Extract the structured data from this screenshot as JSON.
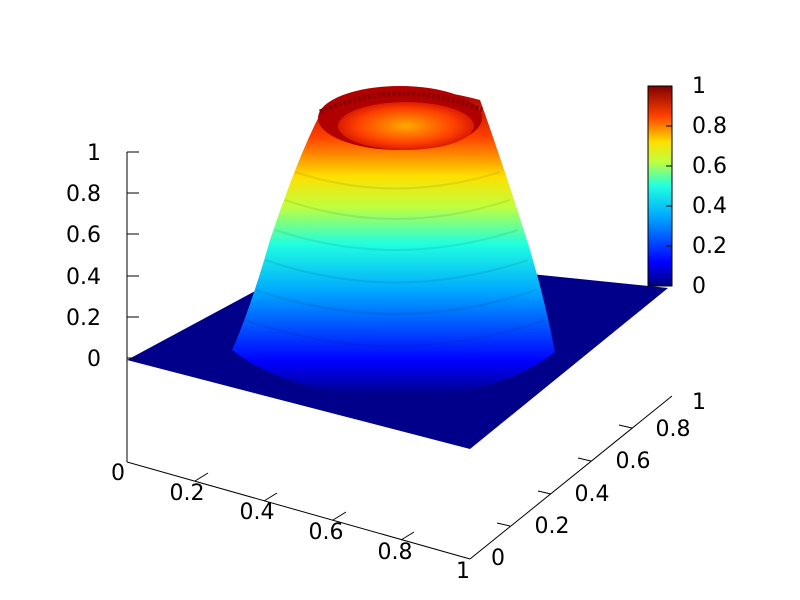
{
  "chart_data": {
    "type": "surface3d",
    "title": "",
    "xlabel": "",
    "ylabel": "",
    "zlabel": "",
    "xlim": [
      0,
      1
    ],
    "ylim": [
      0,
      1
    ],
    "zlim": [
      0,
      1
    ],
    "x_ticks": [
      "0",
      "0.2",
      "0.4",
      "0.6",
      "0.8",
      "1"
    ],
    "y_ticks": [
      "0",
      "0.2",
      "0.4",
      "0.6",
      "0.8",
      "1"
    ],
    "z_ticks": [
      "0",
      "0.2",
      "0.4",
      "0.6",
      "0.8",
      "1"
    ],
    "colorbar": {
      "range": [
        0,
        1
      ],
      "ticks": [
        "0",
        "0.2",
        "0.4",
        "0.6",
        "0.8",
        "1"
      ],
      "colormap": "jet",
      "placement": "top-right"
    },
    "surface": {
      "description_shape": "ring/plateau",
      "center": [
        0.5,
        0.5
      ],
      "rim_radius": 0.2,
      "base_radius": 0.38,
      "peak_value": 1.0,
      "inner_hole_value": 0.9,
      "background_value": 0
    },
    "colors": {
      "low": "#00008b",
      "mid_low": "#0080ff",
      "mid": "#00ffff",
      "mid_high": "#ffff00",
      "high": "#ff4000",
      "top": "#8b0000"
    }
  }
}
